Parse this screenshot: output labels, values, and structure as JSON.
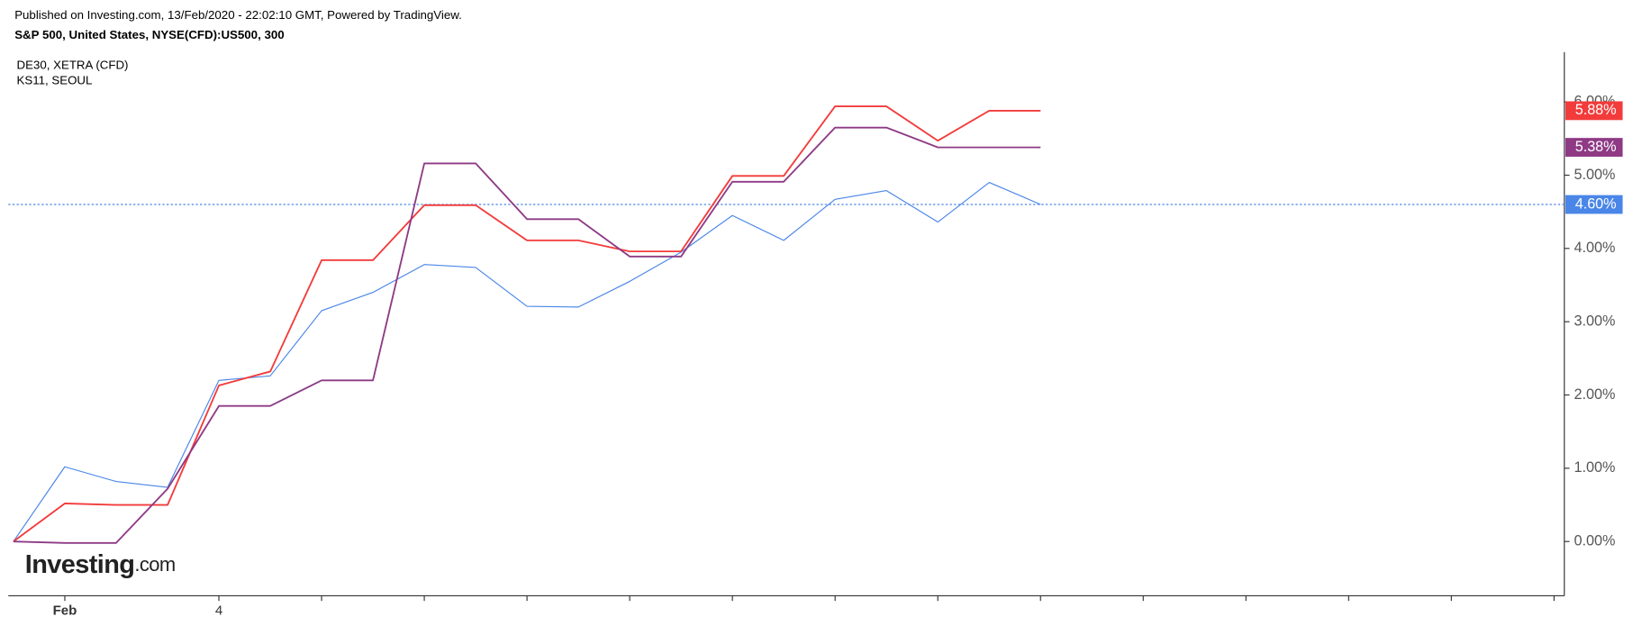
{
  "chart_data": {
    "type": "line",
    "title": "Published on Investing.com, 13/Feb/2020 - 22:02:10 GMT, Powered by TradingView.",
    "subtitle": "S&P 500, United States, NYSE(CFD):US500, 300",
    "watermark": [
      "Investing",
      ".com"
    ],
    "x": [
      0,
      1,
      2,
      3,
      4,
      5,
      6,
      7,
      8,
      9,
      10,
      11,
      12,
      13,
      14,
      15,
      16,
      17,
      18,
      19,
      20
    ],
    "xlim": [
      -0.1,
      30.2
    ],
    "xticks": [
      {
        "value": 1,
        "label": "Feb"
      },
      {
        "value": 4,
        "label": "4"
      },
      {
        "value": 6,
        "label": null
      },
      {
        "value": 8,
        "label": null
      },
      {
        "value": 10,
        "label": null
      },
      {
        "value": 12,
        "label": null
      },
      {
        "value": 14,
        "label": null
      },
      {
        "value": 16,
        "label": null
      },
      {
        "value": 18,
        "label": null
      },
      {
        "value": 20,
        "label": null
      },
      {
        "value": 22,
        "label": null
      },
      {
        "value": 24,
        "label": null
      },
      {
        "value": 26,
        "label": null
      },
      {
        "value": 28,
        "label": null
      },
      {
        "value": 30,
        "label": null
      }
    ],
    "ylim": [
      -0.74,
      6.68
    ],
    "yticks": [
      {
        "value": 0,
        "label": "0.00%"
      },
      {
        "value": 1,
        "label": "1.00%"
      },
      {
        "value": 2,
        "label": "2.00%"
      },
      {
        "value": 3,
        "label": "3.00%"
      },
      {
        "value": 4,
        "label": "4.00%"
      },
      {
        "value": 5,
        "label": "5.00%"
      },
      {
        "value": 6,
        "label": "6.00%"
      }
    ],
    "price_line": true,
    "series": [
      {
        "color": "#4a86e8",
        "width": 1,
        "values": [
          0,
          1.02,
          0.82,
          0.74,
          2.2,
          2.26,
          3.15,
          3.4,
          3.78,
          3.74,
          3.21,
          3.2,
          3.55,
          3.95,
          4.45,
          4.11,
          4.67,
          4.79,
          4.36,
          4.9,
          4.6
        ],
        "value_labels": [
          null,
          null,
          null,
          null,
          null,
          null,
          null,
          null,
          null,
          null,
          null,
          null,
          null,
          null,
          null,
          null,
          null,
          null,
          null,
          null,
          "4.60%"
        ]
      },
      {
        "name": "DE30, XETRA (CFD)",
        "color": "#f23b3b",
        "width": 1.6,
        "values": [
          0,
          0.52,
          0.5,
          0.5,
          2.13,
          2.32,
          3.84,
          3.84,
          4.59,
          4.59,
          4.11,
          4.11,
          3.96,
          3.96,
          4.99,
          4.99,
          5.94,
          5.94,
          5.47,
          5.88,
          5.88
        ],
        "value_labels": [
          null,
          null,
          null,
          null,
          null,
          null,
          null,
          null,
          null,
          null,
          null,
          null,
          null,
          null,
          null,
          null,
          null,
          null,
          null,
          null,
          "5.88%"
        ]
      },
      {
        "name": "KS11, SEOUL",
        "color": "#8e3a85",
        "width": 1.6,
        "values": [
          0,
          -0.02,
          -0.02,
          0.72,
          1.85,
          1.85,
          2.2,
          2.2,
          5.16,
          5.16,
          4.4,
          4.4,
          3.89,
          3.89,
          4.91,
          4.91,
          5.65,
          5.65,
          5.38,
          5.38,
          5.38
        ],
        "value_labels": [
          null,
          null,
          null,
          null,
          null,
          null,
          null,
          null,
          null,
          null,
          null,
          null,
          null,
          null,
          null,
          null,
          null,
          null,
          null,
          null,
          "5.38%"
        ]
      }
    ]
  }
}
